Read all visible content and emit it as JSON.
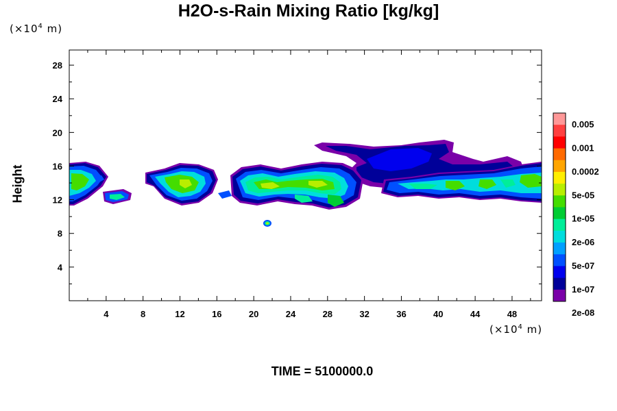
{
  "chart_data": {
    "type": "heatmap",
    "title": "H2O-s-Rain Mixing Ratio [kg/kg]",
    "xlabel": "",
    "ylabel": "Height",
    "x_unit": "(×10⁴ m)",
    "y_unit": "(×10⁴ m)",
    "x_unit_parts": {
      "prefix": "(×10",
      "exp": "4",
      "suffix": " m)"
    },
    "y_unit_parts": {
      "prefix": "(×10",
      "exp": "4",
      "suffix": " m)"
    },
    "xlim": [
      0,
      51.2
    ],
    "ylim": [
      0,
      29.8
    ],
    "x_ticks": [
      4,
      8,
      12,
      16,
      20,
      24,
      28,
      32,
      36,
      40,
      44,
      48
    ],
    "x_tick_labels": [
      "4",
      "8",
      "12",
      "16",
      "20",
      "24",
      "28",
      "32",
      "36",
      "40",
      "44",
      "48"
    ],
    "y_ticks": [
      4,
      8,
      12,
      16,
      20,
      24,
      28
    ],
    "y_tick_labels": [
      "4",
      "8",
      "12",
      "16",
      "20",
      "24",
      "28"
    ],
    "footer": "TIME = 5100000.0",
    "colorbar": {
      "labels": [
        "0.005",
        "0.001",
        "0.0002",
        "5e-05",
        "1e-05",
        "2e-06",
        "5e-07",
        "1e-07",
        "2e-08"
      ],
      "colors_top_to_bottom": [
        "#ff9898",
        "#ff4040",
        "#ff0000",
        "#ff6a00",
        "#ffa500",
        "#ffee00",
        "#b8ee00",
        "#44dd00",
        "#00cc33",
        "#00ee99",
        "#00dddd",
        "#00a0ff",
        "#0050ff",
        "#0000ee",
        "#000099",
        "#7a00a8"
      ]
    },
    "features": [
      {
        "name": "cloud-left",
        "x": [
          0,
          7
        ],
        "y": [
          12,
          16
        ],
        "peak": "2e-06 to 5e-05"
      },
      {
        "name": "cloud-left-center",
        "x": [
          8.5,
          17
        ],
        "y": [
          12,
          16.2
        ],
        "peak": "2e-06 to 5e-05"
      },
      {
        "name": "cloud-center",
        "x": [
          18,
          31
        ],
        "y": [
          11,
          16
        ],
        "peak": "1e-05 to 5e-05"
      },
      {
        "name": "anvil-upper",
        "x": [
          26,
          42
        ],
        "y": [
          14,
          19
        ],
        "peak": "2e-08 to 1e-07"
      },
      {
        "name": "cloud-right",
        "x": [
          38,
          51.2
        ],
        "y": [
          12,
          16.5
        ],
        "peak": "2e-06 to 5e-05"
      },
      {
        "name": "small-blob",
        "x": [
          21.3,
          21.8
        ],
        "y": [
          9.2,
          9.7
        ],
        "peak": "1e-05"
      }
    ]
  }
}
